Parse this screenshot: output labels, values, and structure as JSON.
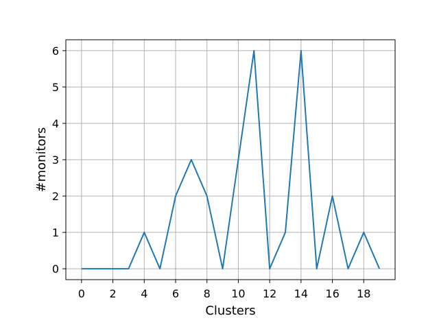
{
  "chart_data": {
    "type": "line",
    "xlabel": "Clusters",
    "ylabel": "#monitors",
    "xlim": [
      -1,
      20
    ],
    "ylim": [
      -0.3,
      6.3
    ],
    "grid": true,
    "xticks": [
      0,
      2,
      4,
      6,
      8,
      10,
      12,
      14,
      16,
      18
    ],
    "yticks": [
      0,
      1,
      2,
      3,
      4,
      5,
      6
    ],
    "x": [
      0,
      1,
      2,
      3,
      4,
      5,
      6,
      7,
      8,
      9,
      10,
      11,
      12,
      13,
      14,
      15,
      16,
      17,
      18,
      19
    ],
    "series": [
      {
        "values": [
          0,
          0,
          0,
          0,
          1,
          0,
          2,
          3,
          2,
          0,
          3,
          6,
          0,
          1,
          6,
          0,
          2,
          0,
          1,
          0
        ],
        "color": "#1f77b4"
      }
    ]
  }
}
